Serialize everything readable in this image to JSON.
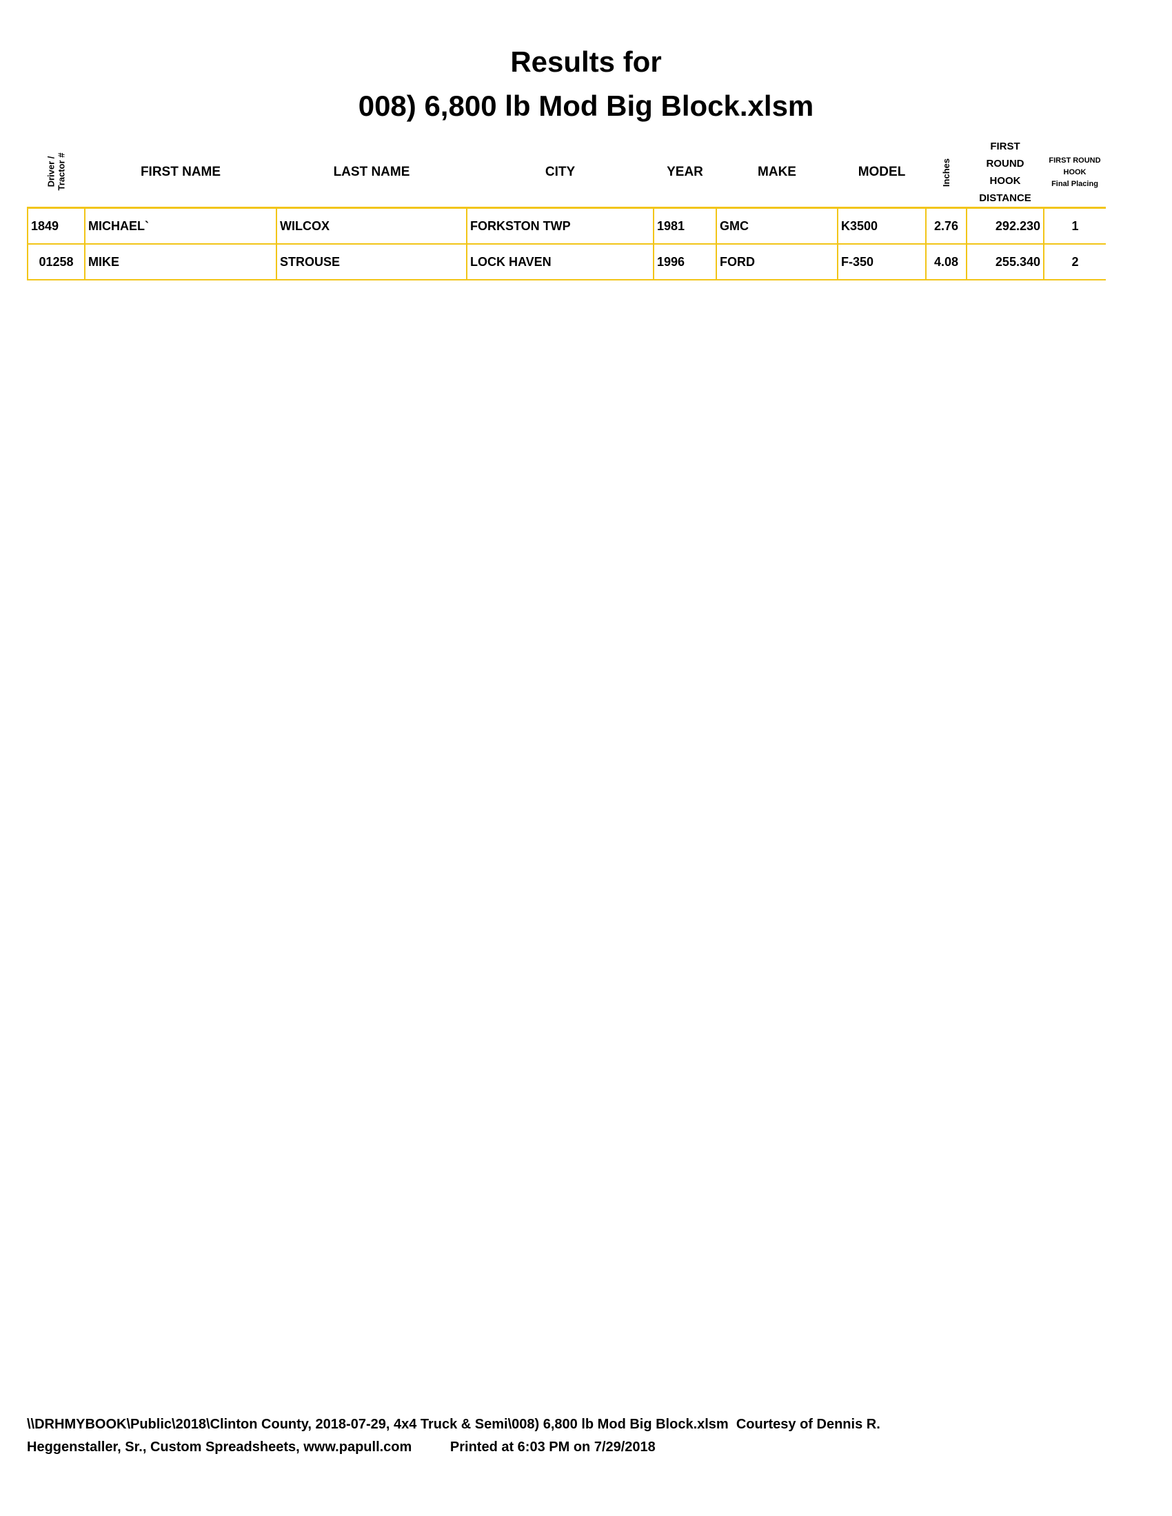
{
  "title": {
    "line1": "Results for",
    "line2": "008) 6,800 lb Mod Big Block.xlsm"
  },
  "table": {
    "headers": [
      "Driver / Tractor #",
      "FIRST NAME",
      "LAST NAME",
      "CITY",
      "YEAR",
      "MAKE",
      "MODEL",
      "Inches",
      "FIRST ROUND HOOK DISTANCE",
      "FIRST ROUND HOOK Final Placing"
    ],
    "header_parts": {
      "driver_1": "Driver /",
      "driver_2": "Tractor #",
      "dist": [
        "FIRST",
        "ROUND",
        "HOOK",
        "DISTANCE"
      ],
      "place": [
        "FIRST ROUND",
        "HOOK",
        "Final Placing"
      ]
    },
    "rows": [
      [
        "1849",
        "MICHAEL`",
        "WILCOX",
        "FORKSTON TWP",
        "1981",
        "GMC",
        "K3500",
        "2.76",
        "292.230",
        "1"
      ],
      [
        "01258",
        "MIKE",
        "STROUSE",
        "LOCK HAVEN",
        "1996",
        "FORD",
        "F-350",
        "4.08",
        "255.340",
        "2"
      ]
    ]
  },
  "footer": {
    "line1": "\\\\DRHMYBOOK\\Public\\2018\\Clinton County, 2018-07-29, 4x4 Truck & Semi\\008) 6,800 lb Mod Big Block.xlsm  Courtesy of Dennis R.",
    "line2": "Heggenstaller, Sr., Custom Spreadsheets, www.papull.com",
    "printed": "Printed at 6:03 PM on 7/29/2018"
  },
  "colors": {
    "grid": "#f2c518"
  }
}
